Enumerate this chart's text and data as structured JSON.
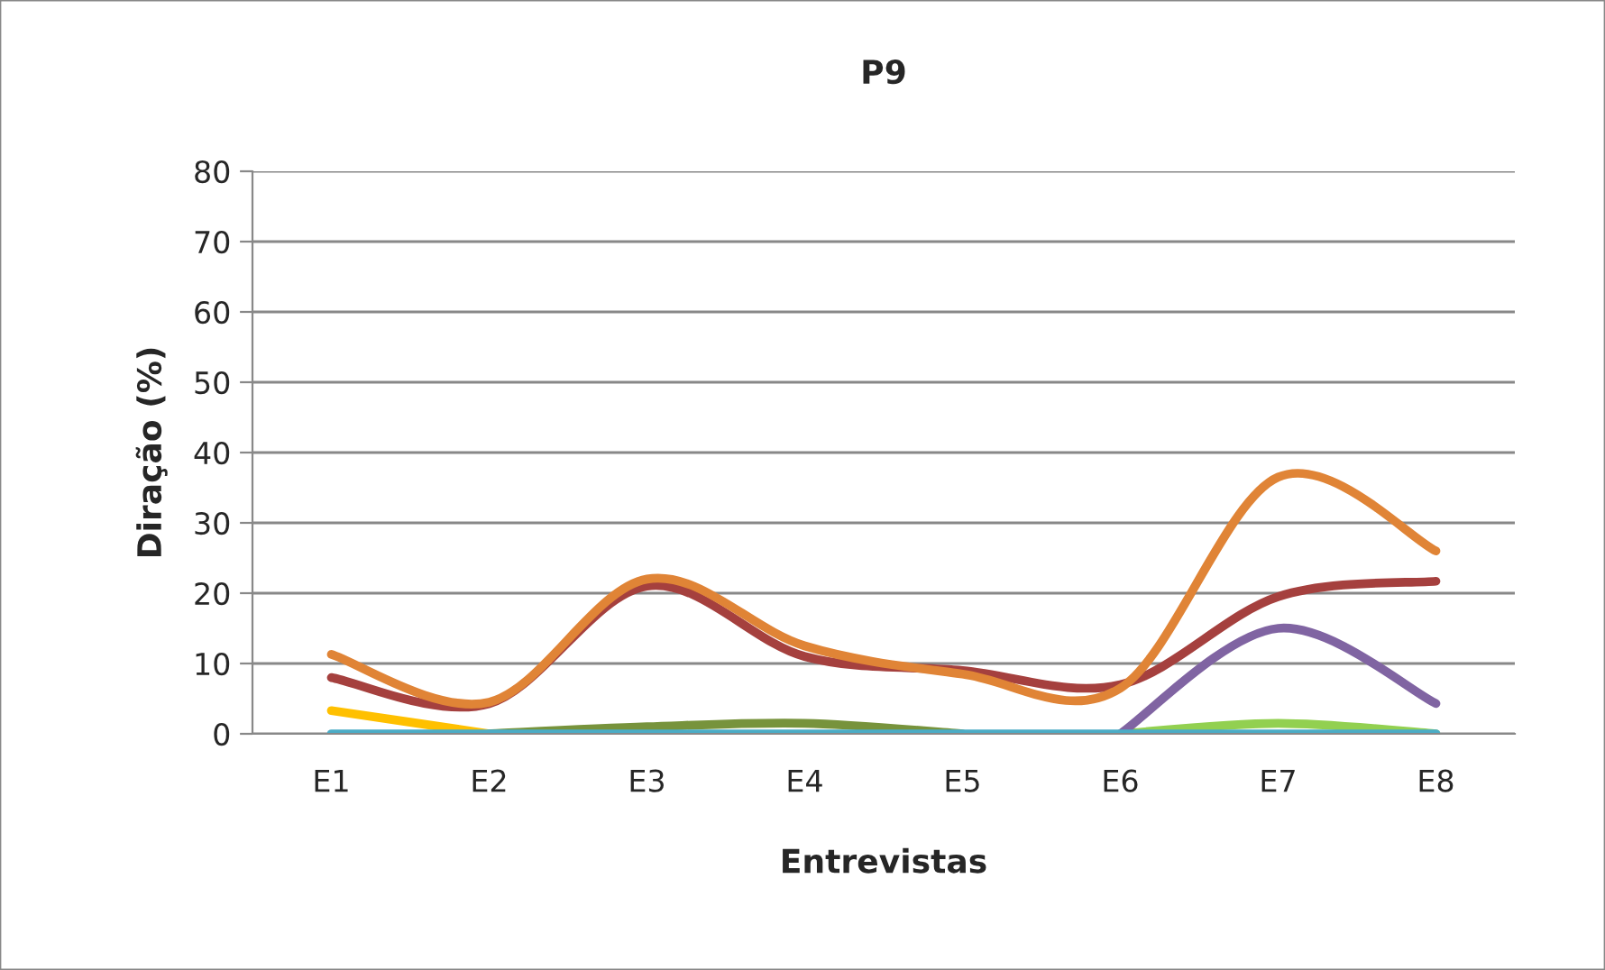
{
  "chart_data": {
    "type": "line",
    "title": "P9",
    "xlabel": "Entrevistas",
    "ylabel": "Diração (%)",
    "categories": [
      "E1",
      "E2",
      "E3",
      "E4",
      "E5",
      "E6",
      "E7",
      "E8"
    ],
    "series": [
      {
        "color": "#ffc000",
        "values": [
          3.3,
          0,
          null,
          null,
          null,
          null,
          null,
          null
        ]
      },
      {
        "color": "#77933c",
        "values": [
          null,
          0,
          1,
          1.5,
          0,
          null,
          null,
          null
        ]
      },
      {
        "color": "#92d050",
        "values": [
          null,
          null,
          null,
          null,
          null,
          0,
          1.5,
          0
        ]
      },
      {
        "color": "#8064a2",
        "values": [
          null,
          null,
          null,
          null,
          null,
          0,
          15,
          4.3
        ]
      },
      {
        "color": "#4bacc6",
        "values": [
          0,
          0,
          0,
          0,
          0,
          0,
          0,
          0
        ]
      },
      {
        "color": "#a5403e",
        "values": [
          8,
          4.3,
          21,
          11,
          9,
          7,
          19.5,
          21.7
        ]
      },
      {
        "color": "#e08436",
        "values": [
          11.3,
          4.5,
          22,
          12.5,
          8.5,
          6.5,
          36.5,
          26
        ]
      }
    ],
    "ylim": [
      0,
      80
    ],
    "yticks": [
      0,
      10,
      20,
      30,
      40,
      50,
      60,
      70,
      80
    ],
    "grid": "y",
    "legend": false,
    "marker": "none",
    "line_style": "solid"
  }
}
